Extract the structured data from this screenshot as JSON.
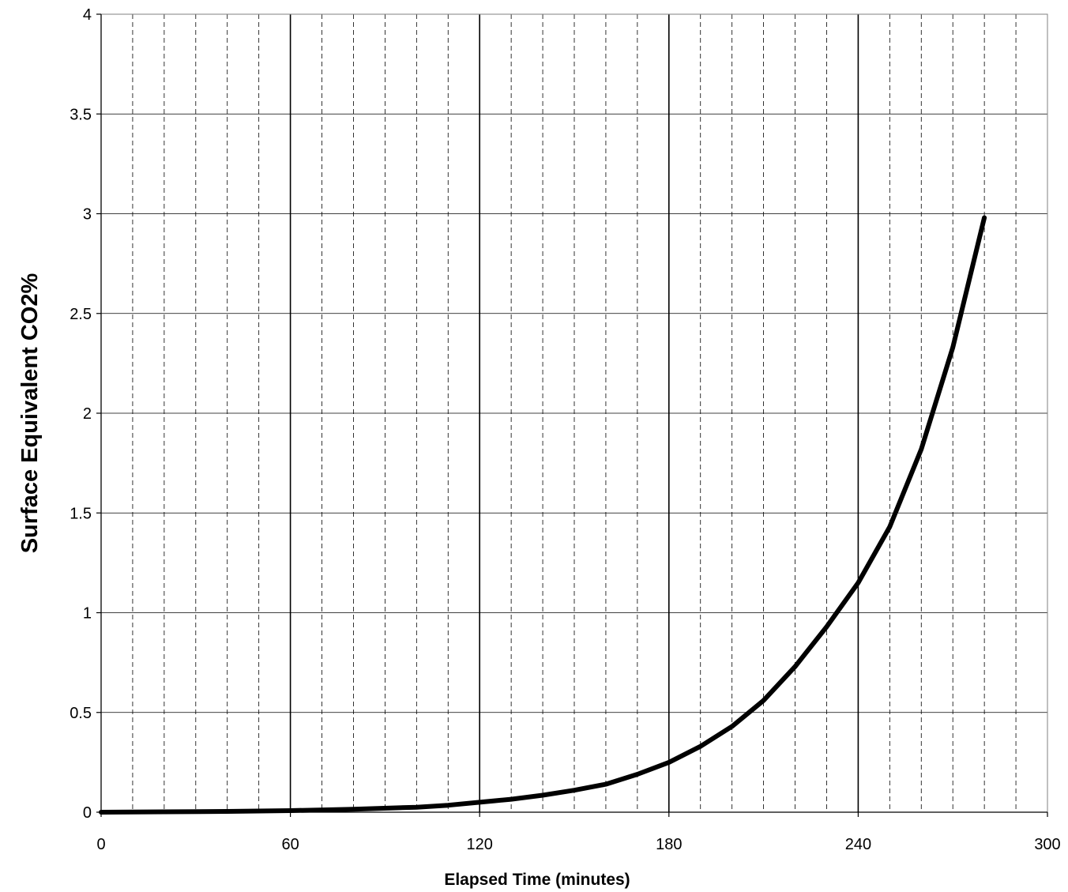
{
  "chart_data": {
    "type": "line",
    "title": "",
    "xlabel": "Elapsed Time (minutes)",
    "ylabel": "Surface Equivalent CO2%",
    "xlim": [
      0,
      300
    ],
    "ylim": [
      0,
      4
    ],
    "x_ticks": [
      0,
      60,
      120,
      180,
      240,
      300
    ],
    "y_ticks": [
      0,
      0.5,
      1,
      1.5,
      2,
      2.5,
      3,
      3.5,
      4
    ],
    "x_major_grid_step": 60,
    "x_minor_grid_step": 10,
    "y_grid_step": 0.5,
    "grid": true,
    "legend": "none",
    "line_color": "#000000",
    "series": [
      {
        "x": [
          0,
          20,
          40,
          60,
          80,
          100,
          110,
          120,
          130,
          140,
          150,
          160,
          170,
          180,
          190,
          200,
          210,
          220,
          230,
          240,
          250,
          260,
          270,
          280
        ],
        "y": [
          0.0,
          0.002,
          0.004,
          0.008,
          0.015,
          0.025,
          0.035,
          0.05,
          0.065,
          0.085,
          0.11,
          0.14,
          0.19,
          0.25,
          0.33,
          0.43,
          0.56,
          0.73,
          0.93,
          1.15,
          1.43,
          1.82,
          2.33,
          2.98
        ]
      }
    ]
  }
}
